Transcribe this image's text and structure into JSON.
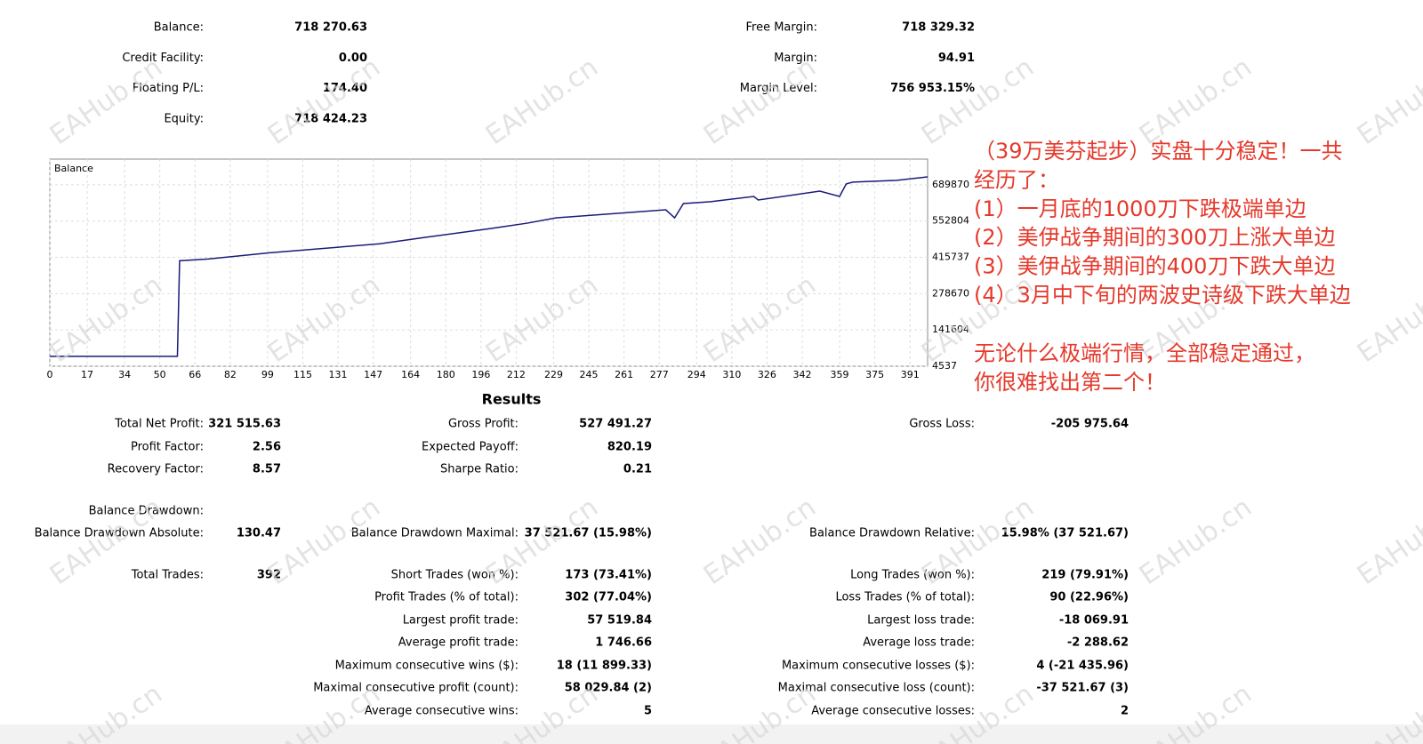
{
  "account": {
    "left": [
      {
        "label": "Balance:",
        "value": "718 270.63"
      },
      {
        "label": "Credit Facility:",
        "value": "0.00"
      },
      {
        "label": "Floating P/L:",
        "value": "174.40"
      },
      {
        "label": "Equity:",
        "value": "718 424.23"
      }
    ],
    "right": [
      {
        "label": "Free Margin:",
        "value": "718 329.32"
      },
      {
        "label": "Margin:",
        "value": "94.91"
      },
      {
        "label": "Margin Level:",
        "value": "756 953.15%"
      }
    ]
  },
  "chart_data": {
    "type": "line",
    "title": "Balance",
    "x": [
      0,
      58,
      59,
      72,
      100,
      150,
      170,
      200,
      217,
      230,
      280,
      284,
      288,
      300,
      320,
      322,
      350,
      359,
      362,
      365,
      385,
      399
    ],
    "values": [
      41700,
      41700,
      402900,
      409600,
      433300,
      467000,
      490700,
      524400,
      545000,
      565000,
      595400,
      565000,
      619000,
      625700,
      645900,
      632500,
      666200,
      645900,
      693200,
      700000,
      706700,
      720000
    ],
    "color": "#1a1a7a",
    "xlim": [
      0,
      399
    ],
    "ylim": [
      4537,
      787000
    ],
    "xticks": [
      0,
      17,
      34,
      50,
      66,
      82,
      99,
      115,
      131,
      147,
      164,
      180,
      196,
      212,
      229,
      245,
      261,
      277,
      294,
      310,
      326,
      342,
      359,
      375,
      391
    ],
    "yticks": [
      4537,
      141604,
      278670,
      415737,
      552804,
      689870
    ],
    "grid": true
  },
  "results": {
    "title": "Results",
    "rows": [
      [
        {
          "label": "Total Net Profit:",
          "value": "321 515.63"
        },
        {
          "label": "Gross Profit:",
          "value": "527 491.27"
        },
        {
          "label": "Gross Loss:",
          "value": "-205 975.64"
        }
      ],
      [
        {
          "label": "Profit Factor:",
          "value": "2.56"
        },
        {
          "label": "Expected Payoff:",
          "value": "820.19"
        },
        null
      ],
      [
        {
          "label": "Recovery Factor:",
          "value": "8.57"
        },
        {
          "label": "Sharpe Ratio:",
          "value": "0.21"
        },
        null
      ],
      [
        {
          "label": "Balance Drawdown:"
        },
        null,
        null
      ],
      [
        {
          "label": "Balance Drawdown Absolute:",
          "value": "130.47"
        },
        {
          "label": "Balance Drawdown Maximal:",
          "value": "37 521.67 (15.98%)"
        },
        {
          "label": "Balance Drawdown Relative:",
          "value": "15.98% (37 521.67)"
        }
      ],
      [
        {
          "label": "Total Trades:",
          "value": "392"
        },
        {
          "label": "Short Trades (won %):",
          "value": "173 (73.41%)"
        },
        {
          "label": "Long Trades (won %):",
          "value": "219 (79.91%)"
        }
      ],
      [
        null,
        {
          "label": "Profit Trades (% of total):",
          "value": "302 (77.04%)"
        },
        {
          "label": "Loss Trades (% of total):",
          "value": "90 (22.96%)"
        }
      ],
      [
        null,
        {
          "label": "Largest profit trade:",
          "value": "57 519.84"
        },
        {
          "label": "Largest loss trade:",
          "value": "-18 069.91"
        }
      ],
      [
        null,
        {
          "label": "Average profit trade:",
          "value": "1 746.66"
        },
        {
          "label": "Average loss trade:",
          "value": "-2 288.62"
        }
      ],
      [
        null,
        {
          "label": "Maximum consecutive wins ($):",
          "value": "18 (11 899.33)"
        },
        {
          "label": "Maximum consecutive losses ($):",
          "value": "4 (-21 435.96)"
        }
      ],
      [
        null,
        {
          "label": "Maximal consecutive profit (count):",
          "value": "58 029.84 (2)"
        },
        {
          "label": "Maximal consecutive loss (count):",
          "value": "-37 521.67 (3)"
        }
      ],
      [
        null,
        {
          "label": "Average consecutive wins:",
          "value": "5"
        },
        {
          "label": "Average consecutive losses:",
          "value": "2"
        }
      ]
    ]
  },
  "annotation": {
    "paragraphs": [
      [
        "（39万美芬起步）实盘十分稳定！一共",
        "经历了：",
        "(1）一月底的1000刀下跌极端单边",
        "(2）美伊战争期间的300刀上涨大单边",
        "(3）美伊战争期间的400刀下跌大单边",
        "(4）3月中下旬的两波史诗级下跌大单边"
      ],
      [
        "无论什么极端行情，全部稳定通过，",
        "你很难找出第二个！"
      ]
    ]
  },
  "watermark": "EAHub.cn"
}
